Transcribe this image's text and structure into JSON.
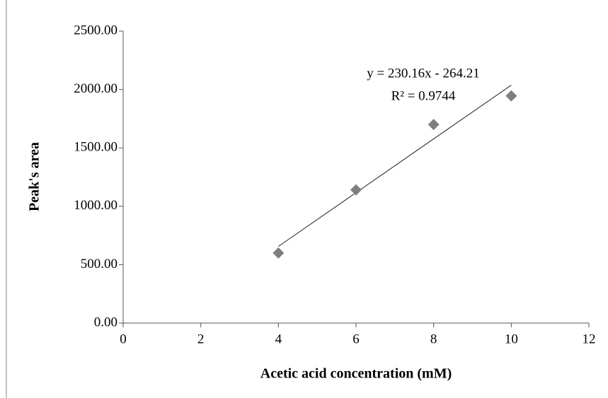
{
  "chart_data": {
    "type": "scatter",
    "x_label": "Acetic acid concentration (mM)",
    "y_label": "Peak's area",
    "series": [
      {
        "name": "Peak's area",
        "color": "#7f7f7f",
        "x": [
          4,
          6,
          8,
          10
        ],
        "values": [
          600,
          1140,
          1700,
          1945
        ]
      }
    ],
    "trendline": {
      "slope": 230.16,
      "intercept": -264.21,
      "color": "#404040"
    },
    "equation": "y = 230.16x - 264.21",
    "r_squared": "R² = 0.9744",
    "xlim": [
      0,
      12
    ],
    "xticks": [
      0,
      2,
      4,
      6,
      8,
      10,
      12
    ],
    "ylim": [
      0,
      2500
    ],
    "yticks": [
      {
        "value": 0,
        "label": "0.00"
      },
      {
        "value": 500,
        "label": "500.00"
      },
      {
        "value": 1000,
        "label": "1000.00"
      },
      {
        "value": 1500,
        "label": "1500.00"
      },
      {
        "value": 2000,
        "label": "2000.00"
      },
      {
        "value": 2500,
        "label": "2500.00"
      }
    ],
    "grid": false
  }
}
